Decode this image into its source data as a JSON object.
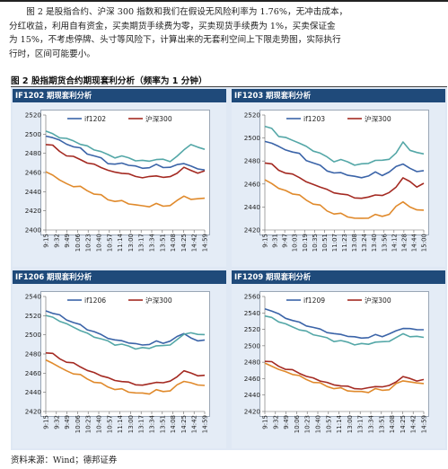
{
  "text": {
    "line1": "图 2 是股指合约、沪深 300 指数和我们在假设无风险利率为 1.76%，无冲击成本，",
    "line2": "分红收益，利用自有资金，买卖期货手续费为零，买卖现货手续费为 1%，买卖保证金",
    "line3": "为 15%，不考虑停牌、头寸等风险下，计算出来的无套利空间上下限走势图，实际执行",
    "line4": "行时，区间可能要小。"
  },
  "figure": {
    "title": "图  2 股指期货合约期现套利分析（频率为 1 分钟）",
    "source": "资料来源：Wind；德邦证券"
  },
  "colors": {
    "header_bg": "#1f4a7a",
    "figure_bg": "#dfe8f4",
    "futures_line": "#3b64a8",
    "index_line": "#a42a22",
    "upper_bound": "#54a7a7",
    "lower_bound": "#e08a2c"
  },
  "chart_data": [
    {
      "type": "line",
      "title": "IF1202 期现套利分析",
      "ylim": [
        2400,
        2520
      ],
      "yticks": [
        2520,
        2500,
        2480,
        2460,
        2440,
        2420,
        2400
      ],
      "xticks": [
        "9:15",
        "9:32",
        "9:49",
        "10:06",
        "10:23",
        "10:40",
        "10:57",
        "11:14",
        "13:00",
        "13:17",
        "13:34",
        "13:51",
        "14:08",
        "14:25",
        "14:42",
        "14:59"
      ],
      "legend": [
        "if1202",
        "沪深300"
      ],
      "series": [
        {
          "name": "if1202",
          "color": "#3b64a8",
          "values": [
            2498,
            2497,
            2493,
            2490,
            2487,
            2485,
            2480,
            2477,
            2475,
            2470,
            2468,
            2470,
            2468,
            2466,
            2465,
            2465,
            2468,
            2466,
            2465,
            2468,
            2470,
            2466,
            2464,
            2463
          ]
        },
        {
          "name": "沪深300",
          "color": "#a42a22",
          "values": [
            2490,
            2488,
            2482,
            2478,
            2476,
            2474,
            2470,
            2468,
            2466,
            2462,
            2460,
            2460,
            2458,
            2456,
            2455,
            2455,
            2457,
            2455,
            2455,
            2460,
            2465,
            2462,
            2460,
            2461
          ]
        },
        {
          "color": "#54a7a7",
          "values": [
            2503,
            2500,
            2497,
            2495,
            2493,
            2490,
            2487,
            2484,
            2482,
            2478,
            2476,
            2477,
            2475,
            2473,
            2472,
            2472,
            2474,
            2473,
            2472,
            2477,
            2483,
            2490,
            2486,
            2484
          ]
        },
        {
          "color": "#e08a2c",
          "values": [
            2460,
            2458,
            2452,
            2448,
            2446,
            2445,
            2441,
            2438,
            2436,
            2432,
            2430,
            2430,
            2428,
            2426,
            2425,
            2425,
            2427,
            2425,
            2426,
            2430,
            2436,
            2432,
            2432,
            2434
          ]
        }
      ]
    },
    {
      "type": "line",
      "title": "IF1203 期现套利分析",
      "ylim": [
        2420,
        2520
      ],
      "yticks": [
        2520,
        2500,
        2480,
        2460,
        2440,
        2420
      ],
      "xticks": [
        "9:15",
        "9:31",
        "9:47",
        "10:03",
        "10:19",
        "10:35",
        "10:51",
        "11:07",
        "11:23",
        "13:08",
        "13:24",
        "13:40",
        "13:56",
        "14:12",
        "14:28",
        "14:44",
        "15:00"
      ],
      "legend": [
        "if1203",
        "沪深300"
      ],
      "series": [
        {
          "name": "if1203",
          "color": "#3b64a8",
          "values": [
            2497,
            2496,
            2492,
            2490,
            2488,
            2486,
            2481,
            2478,
            2476,
            2472,
            2469,
            2470,
            2468,
            2466,
            2466,
            2467,
            2470,
            2468,
            2470,
            2475,
            2478,
            2473,
            2471,
            2472
          ]
        },
        {
          "name": "沪深300",
          "color": "#a42a22",
          "values": [
            2479,
            2477,
            2472,
            2470,
            2468,
            2466,
            2462,
            2459,
            2458,
            2455,
            2452,
            2452,
            2450,
            2448,
            2448,
            2448,
            2451,
            2450,
            2452,
            2458,
            2465,
            2462,
            2458,
            2460
          ]
        },
        {
          "color": "#54a7a7",
          "values": [
            2510,
            2508,
            2502,
            2500,
            2498,
            2496,
            2492,
            2489,
            2487,
            2483,
            2480,
            2481,
            2479,
            2477,
            2477,
            2478,
            2481,
            2480,
            2482,
            2487,
            2496,
            2490,
            2487,
            2486
          ]
        },
        {
          "color": "#e08a2c",
          "values": [
            2463,
            2461,
            2456,
            2454,
            2452,
            2450,
            2446,
            2443,
            2441,
            2437,
            2434,
            2434,
            2432,
            2430,
            2430,
            2431,
            2433,
            2432,
            2434,
            2440,
            2445,
            2440,
            2437,
            2438
          ]
        }
      ]
    },
    {
      "type": "line",
      "title": "IF1206 期现套利分析",
      "ylim": [
        2420,
        2540
      ],
      "yticks": [
        2540,
        2520,
        2500,
        2480,
        2460,
        2440,
        2420
      ],
      "xticks": [
        "9:15",
        "9:32",
        "9:49",
        "10:06",
        "10:23",
        "10:40",
        "10:57",
        "11:14",
        "13:00",
        "13:17",
        "13:34",
        "13:51",
        "14:08",
        "14:25",
        "14:42",
        "14:59"
      ],
      "legend": [
        "if1206",
        "沪深300"
      ],
      "series": [
        {
          "name": "if1206",
          "color": "#3b64a8",
          "values": [
            2525,
            2523,
            2520,
            2516,
            2513,
            2510,
            2506,
            2503,
            2500,
            2497,
            2494,
            2494,
            2492,
            2490,
            2490,
            2490,
            2493,
            2492,
            2493,
            2498,
            2502,
            2496,
            2494,
            2495
          ]
        },
        {
          "name": "沪深300",
          "color": "#a42a22",
          "values": [
            2482,
            2480,
            2475,
            2472,
            2470,
            2467,
            2463,
            2460,
            2458,
            2455,
            2452,
            2452,
            2450,
            2448,
            2448,
            2448,
            2451,
            2450,
            2451,
            2457,
            2462,
            2460,
            2458,
            2457
          ]
        },
        {
          "color": "#54a7a7",
          "values": [
            2520,
            2518,
            2515,
            2511,
            2508,
            2505,
            2501,
            2498,
            2496,
            2493,
            2490,
            2490,
            2488,
            2486,
            2486,
            2486,
            2489,
            2488,
            2490,
            2495,
            2500,
            2503,
            2500,
            2500
          ]
        },
        {
          "color": "#e08a2c",
          "values": [
            2473,
            2471,
            2466,
            2462,
            2460,
            2458,
            2454,
            2451,
            2449,
            2446,
            2443,
            2443,
            2441,
            2439,
            2439,
            2439,
            2442,
            2441,
            2442,
            2447,
            2452,
            2450,
            2447,
            2448
          ]
        }
      ]
    },
    {
      "type": "line",
      "title": "IF1209 期现套利分析",
      "ylim": [
        2420,
        2560
      ],
      "yticks": [
        2560,
        2540,
        2520,
        2500,
        2480,
        2460,
        2440,
        2420
      ],
      "xticks": [
        "9:15",
        "9:32",
        "9:49",
        "10:06",
        "10:23",
        "10:40",
        "10:57",
        "11:14",
        "13:00",
        "13:17",
        "13:34",
        "13:51",
        "14:08",
        "14:25",
        "14:42",
        "14:59"
      ],
      "legend": [
        "if1209",
        "沪深300"
      ],
      "series": [
        {
          "name": "if1209",
          "color": "#3b64a8",
          "values": [
            2545,
            2543,
            2538,
            2534,
            2531,
            2528,
            2525,
            2522,
            2520,
            2517,
            2514,
            2514,
            2512,
            2510,
            2510,
            2510,
            2513,
            2512,
            2514,
            2518,
            2522,
            2520,
            2520,
            2520
          ]
        },
        {
          "name": "沪深300",
          "color": "#a42a22",
          "values": [
            2482,
            2480,
            2475,
            2472,
            2470,
            2467,
            2463,
            2460,
            2458,
            2455,
            2452,
            2452,
            2450,
            2448,
            2448,
            2448,
            2451,
            2450,
            2451,
            2457,
            2462,
            2460,
            2458,
            2458
          ]
        },
        {
          "color": "#54a7a7",
          "values": [
            2536,
            2534,
            2530,
            2526,
            2523,
            2520,
            2517,
            2514,
            2512,
            2509,
            2506,
            2506,
            2504,
            2502,
            2502,
            2502,
            2505,
            2504,
            2506,
            2510,
            2514,
            2512,
            2511,
            2510
          ]
        },
        {
          "color": "#e08a2c",
          "values": [
            2478,
            2476,
            2471,
            2468,
            2466,
            2463,
            2459,
            2456,
            2454,
            2451,
            2448,
            2448,
            2446,
            2444,
            2444,
            2444,
            2447,
            2446,
            2447,
            2453,
            2458,
            2456,
            2454,
            2455
          ]
        }
      ]
    }
  ]
}
